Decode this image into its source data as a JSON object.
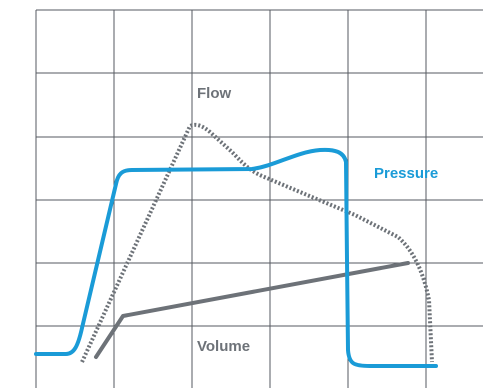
{
  "labels": {
    "flow": "Flow",
    "pressure": "Pressure",
    "volume": "Volume"
  },
  "colors": {
    "pressure": "#1a9bd7",
    "flow": "#6d7278",
    "volume": "#6d7278",
    "grid": "#555a60",
    "label_dark": "#6d7278"
  },
  "diagram": {
    "description_type": "ventilator-waveforms",
    "series": [
      {
        "key": "pressure",
        "style": "solid"
      },
      {
        "key": "flow",
        "style": "dotted"
      },
      {
        "key": "volume",
        "style": "solid"
      }
    ]
  }
}
